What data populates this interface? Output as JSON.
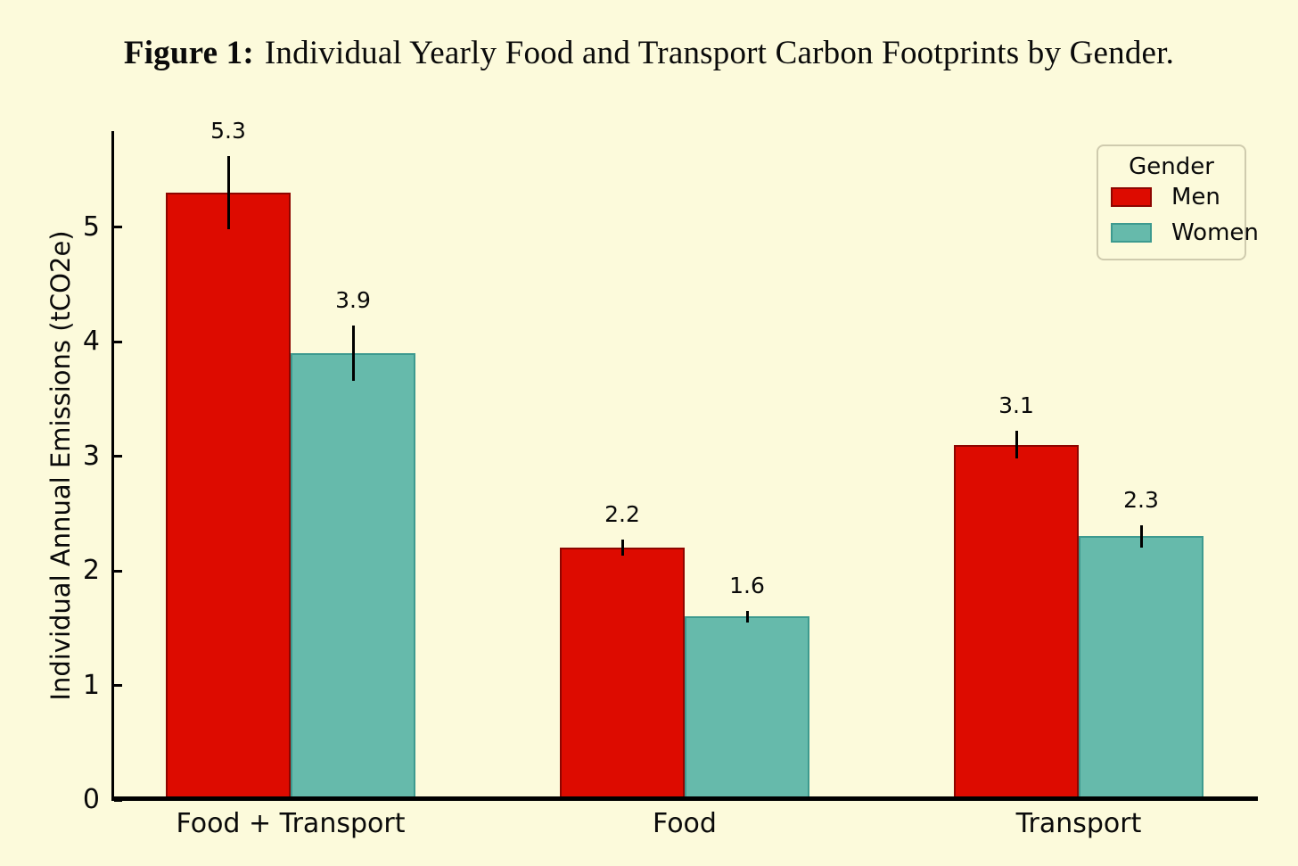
{
  "figure": {
    "caption_prefix": "Figure 1:",
    "caption_text": "Individual Yearly Food and Transport Carbon Footprints by Gender."
  },
  "chart_data": {
    "type": "bar",
    "categories": [
      "Food + Transport",
      "Food",
      "Transport"
    ],
    "series": [
      {
        "name": "Men",
        "color": "#dd0b00",
        "edge_color": "#8e0500",
        "values": [
          5.3,
          2.2,
          3.1
        ],
        "errors": [
          0.32,
          0.07,
          0.12
        ]
      },
      {
        "name": "Women",
        "color": "#66baab",
        "edge_color": "#3d9a8f",
        "values": [
          3.9,
          1.6,
          2.3
        ],
        "errors": [
          0.24,
          0.05,
          0.1
        ]
      }
    ],
    "title": "",
    "xlabel": "",
    "ylabel": "Individual Annual Emissions (tCO2e)",
    "yticks": [
      0,
      1,
      2,
      3,
      4,
      5
    ],
    "ylim": [
      0,
      5.8
    ],
    "grid": false,
    "legend": {
      "title": "Gender",
      "position": "upper-right"
    },
    "background_color": "#fcfadb",
    "axis_color": "#000000"
  }
}
